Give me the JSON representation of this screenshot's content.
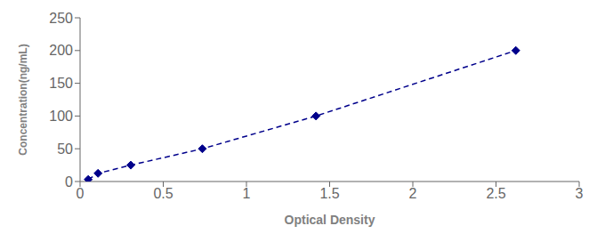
{
  "chart_data": {
    "type": "line",
    "x": [
      0.049,
      0.108,
      0.305,
      0.735,
      1.418,
      2.619
    ],
    "values": [
      3.125,
      12.5,
      25.0,
      50.0,
      100.0,
      200.0
    ],
    "color": "#00008B",
    "marker": "diamond",
    "line_style": "dashed",
    "xlabel": "Optical Density",
    "ylabel": "Concentration(ng/mL)",
    "xlim": [
      0,
      3
    ],
    "ylim": [
      0,
      250
    ],
    "xticks": [
      0,
      0.5,
      1,
      1.5,
      2,
      2.5,
      3
    ],
    "yticks": [
      0,
      50,
      100,
      150,
      200,
      250
    ],
    "grid": false
  }
}
